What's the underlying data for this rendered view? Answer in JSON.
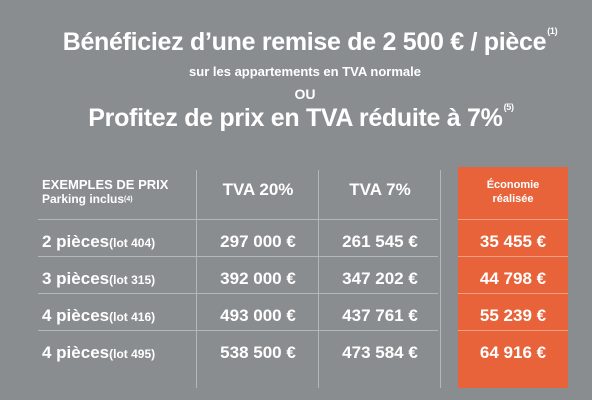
{
  "headline": {
    "line1": "Bénéficiez d’une remise de 2 500 € / pièce",
    "line1_note": "(1)",
    "line2": "sur les appartements en TVA normale",
    "line3": "OU",
    "line4": "Profitez de prix en TVA réduite à 7%",
    "line4_note": "(5)"
  },
  "table": {
    "header": {
      "label_line1": "EXEMPLES DE PRIX",
      "label_line2": "Parking inclus",
      "label_note": "(4)",
      "col1": "TVA 20%",
      "col2": "TVA 7%",
      "col3_line1": "Économie",
      "col3_line2": "réalisée"
    },
    "rows": [
      {
        "label": "2 pièces",
        "lot": "(lot 404)",
        "tva20": "297 000 €",
        "tva7": "261 545 €",
        "economie": "35 455 €"
      },
      {
        "label": "3 pièces",
        "lot": "(lot 315)",
        "tva20": "392 000 €",
        "tva7": "347 202 €",
        "economie": "44 798 €"
      },
      {
        "label": "4 pièces",
        "lot": "(lot 416)",
        "tva20": "493 000 €",
        "tva7": "437 761 €",
        "economie": "55 239 €"
      },
      {
        "label": "4 pièces",
        "lot": "(lot 495)",
        "tva20": "538 500 €",
        "tva7": "473 584 €",
        "economie": "64 916 €"
      }
    ]
  },
  "colors": {
    "background": "#8a8d90",
    "accent": "#e8633a",
    "text": "#ffffff"
  }
}
